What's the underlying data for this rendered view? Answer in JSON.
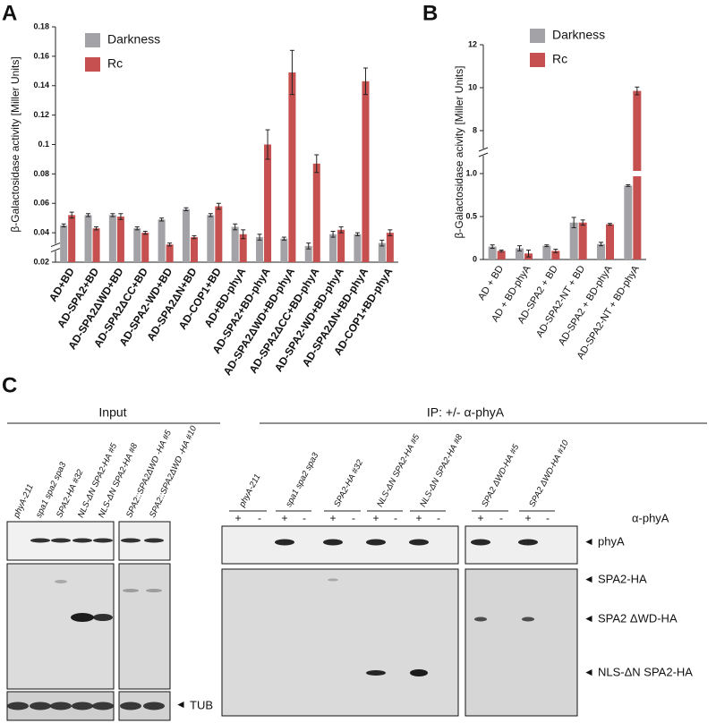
{
  "panels": [
    "A",
    "B",
    "C"
  ],
  "chart_data": [
    {
      "type": "bar",
      "ylabel": "β-Galactosidase activity [Miller Units]",
      "categories": [
        "AD+BD",
        "AD-SPA2+BD",
        "AD-SPA2ΔWD+BD",
        "AD-SPA2ΔCC+BD",
        "AD-SPA2-WD+BD",
        "AD-SPA2ΔN+BD",
        "AD-COP1+BD",
        "AD+BD-phyA",
        "AD-SPA2+BD-phyA",
        "AD-SPA2ΔWD+BD-phyA",
        "AD-SPA2ΔCC+BD-phyA",
        "AD-SPA2-WD+BD-phyA",
        "AD-SPA2ΔN+BD-phyA",
        "AD-COP1+BD-phyA"
      ],
      "series": [
        {
          "name": "Darkness",
          "color": "#a3a3a7",
          "values": [
            0.045,
            0.052,
            0.052,
            0.043,
            0.049,
            0.056,
            0.052,
            0.044,
            0.037,
            0.036,
            0.031,
            0.039,
            0.039,
            0.033
          ],
          "errors": [
            0.001,
            0.001,
            0.001,
            0.001,
            0.001,
            0.001,
            0.001,
            0.002,
            0.002,
            0.001,
            0.002,
            0.002,
            0.001,
            0.002
          ]
        },
        {
          "name": "Rc",
          "color": "#c5504f",
          "values": [
            0.052,
            0.043,
            0.051,
            0.04,
            0.032,
            0.037,
            0.058,
            0.039,
            0.1,
            0.149,
            0.087,
            0.042,
            0.143,
            0.04
          ],
          "errors": [
            0.002,
            0.001,
            0.002,
            0.001,
            0.001,
            0.001,
            0.002,
            0.003,
            0.01,
            0.015,
            0.006,
            0.002,
            0.009,
            0.002
          ]
        }
      ],
      "ylim": [
        0.02,
        0.18
      ],
      "yticks": [
        0.02,
        0.04,
        0.06,
        0.08,
        0.1,
        0.12,
        0.14,
        0.16,
        0.18
      ]
    },
    {
      "type": "bar",
      "ylabel": "β-Galactosidase acivity [Miller Units]",
      "categories": [
        "AD + BD",
        "AD + BD-phyA",
        "AD-SPA2 + BD",
        "AD-SPA2-NT + BD",
        "AD-SPA2 + BD-phyA",
        "AD-SPA2-NT + BD-phyA"
      ],
      "series": [
        {
          "name": "Darkness",
          "color": "#a3a3a7",
          "values": [
            0.15,
            0.13,
            0.16,
            0.43,
            0.18,
            0.86
          ],
          "errors": [
            0.02,
            0.03,
            0.01,
            0.06,
            0.02,
            0.01
          ]
        },
        {
          "name": "Rc",
          "color": "#c5504f",
          "values": [
            0.1,
            0.07,
            0.1,
            0.43,
            0.41,
            9.85
          ],
          "errors": [
            0.01,
            0.04,
            0.02,
            0.03,
            0.01,
            0.18
          ]
        }
      ],
      "ylim": [
        0,
        12
      ],
      "yticks": [
        0,
        0.5,
        {
          "value": 1,
          "label": "1.0"
        },
        8,
        10,
        12
      ]
    }
  ],
  "blot": {
    "input_title": "Input",
    "ip_title": "IP:  +/- α-phyA",
    "input_lanes": [
      "phyA-211",
      "spa1 spa2 spa3",
      "SPA2-HA #32",
      "NLS-ΔN SPA2-HA #5",
      "NLS-ΔN SPA2-HA #8",
      "SPA2::SPA2ΔWD -HA #5",
      "SPA2::SPA2ΔWD -HA #10"
    ],
    "ip_groups": [
      "phyA-211",
      "spa1 spa2 spa3",
      "SPA2-HA #32",
      "NLS-ΔN SPA2-HA #5",
      "NLS-ΔN SPA2-HA #8",
      "SPA2 ΔWD-HA #5",
      "SPA2 ΔWD-HA #10"
    ],
    "plus": "+",
    "minus": "-",
    "antibody": "α-phyA",
    "band_labels": [
      "phyA",
      "SPA2-HA",
      "SPA2 ΔWD-HA",
      "NLS-ΔN SPA2-HA"
    ],
    "loading_label": "TUB"
  }
}
